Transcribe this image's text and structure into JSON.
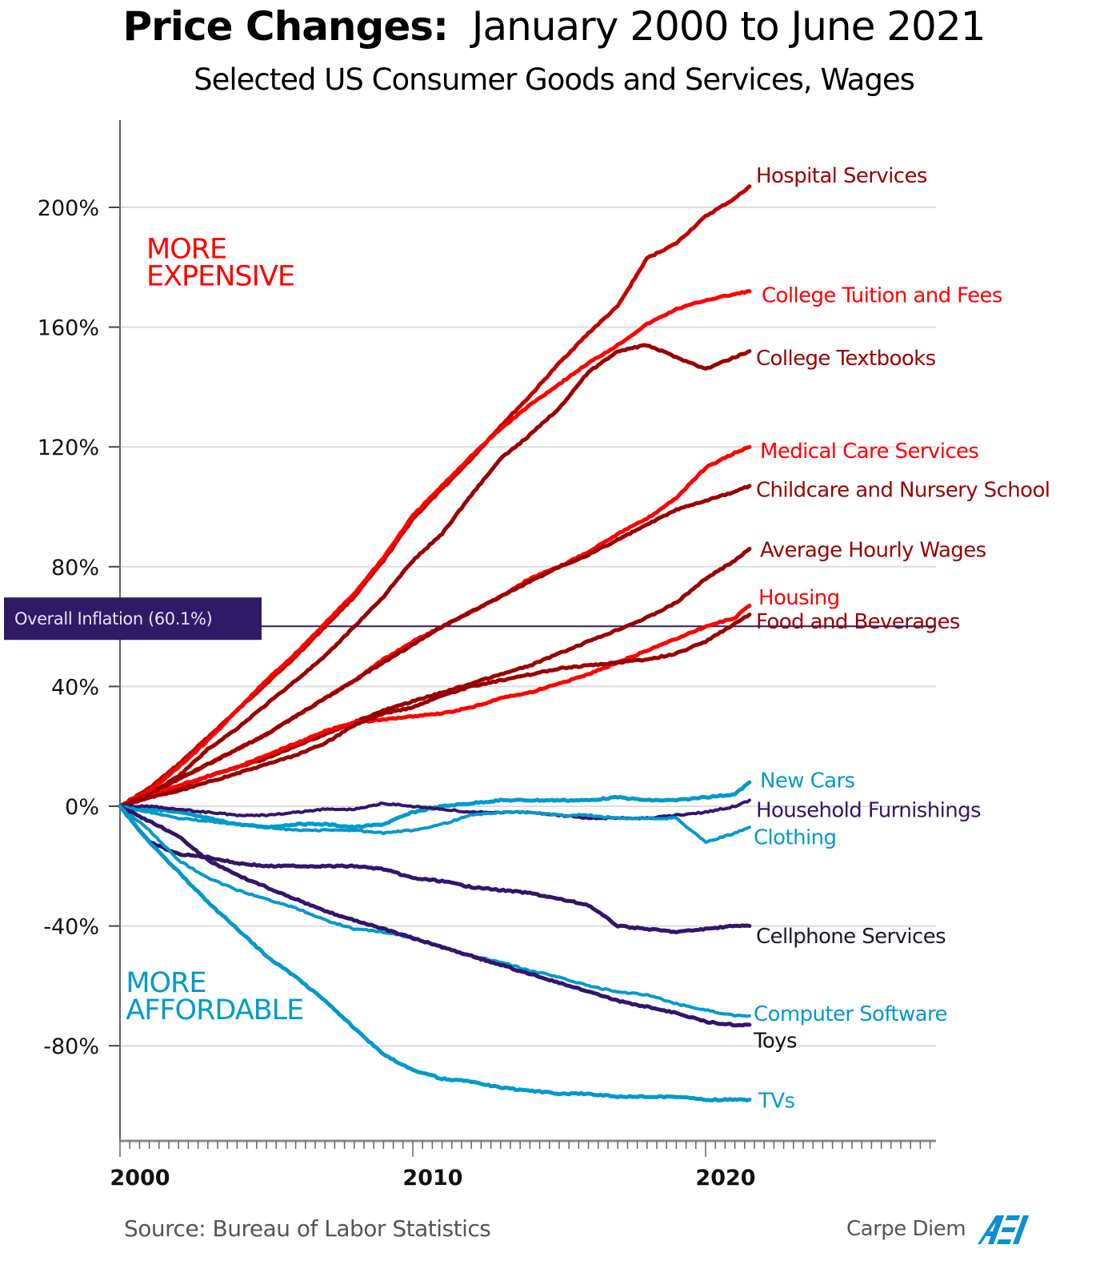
{
  "header": {
    "title_bold": "Price Changes:",
    "title_rest": "January 2000 to June 2021",
    "subtitle": "Selected US Consumer Goods and Services, Wages"
  },
  "footer": {
    "source": "Source: Bureau of Labor Statistics",
    "brand": "Carpe Diem",
    "logo": "AEI"
  },
  "colors": {
    "bright_red": "#ff0000",
    "dark_red": "#990000",
    "mid_red": "#c00000",
    "light_blue": "#0099cc",
    "purple": "#33146b",
    "inflation_box": "#2e1a66",
    "gridline": "#dcdcdc",
    "axis": "#666666"
  },
  "chart_data": {
    "type": "line",
    "title": "Price Changes: January 2000 to June 2021",
    "subtitle": "Selected US Consumer Goods and Services, Wages",
    "xlabel": "",
    "ylabel": "",
    "xlim": [
      2000,
      2027
    ],
    "ylim": [
      -110,
      230
    ],
    "x_ticks": [
      {
        "value": 2000,
        "label": "2000"
      },
      {
        "value": 2010,
        "label": "2010"
      },
      {
        "value": 2020,
        "label": "2020"
      }
    ],
    "y_ticks": [
      {
        "value": 200,
        "label": "200%"
      },
      {
        "value": 160,
        "label": "160%"
      },
      {
        "value": 120,
        "label": "120%"
      },
      {
        "value": 80,
        "label": "80%"
      },
      {
        "value": 40,
        "label": "40%"
      },
      {
        "value": 0,
        "label": "0%"
      },
      {
        "value": -40,
        "label": "-40%"
      },
      {
        "value": -80,
        "label": "-80%"
      }
    ],
    "grid": true,
    "region_labels": [
      {
        "text": [
          "MORE",
          "EXPENSIVE"
        ],
        "color": "#ff0000",
        "anchor": {
          "x": 2000.9,
          "y": 183
        }
      },
      {
        "text": [
          "MORE",
          "AFFORDABLE"
        ],
        "color": "#0099cc",
        "anchor": {
          "x": 2000.2,
          "y": -62
        }
      }
    ],
    "reference_line": {
      "label": "Overall Inflation (60.1%)",
      "value": 60.1,
      "color": "#2e1a66"
    },
    "x": [
      2000,
      2001,
      2002,
      2003,
      2004,
      2005,
      2006,
      2007,
      2008,
      2009,
      2010,
      2011,
      2012,
      2013,
      2014,
      2015,
      2016,
      2017,
      2018,
      2019,
      2020,
      2021,
      2021.5
    ],
    "series": [
      {
        "name": "Hospital Services",
        "color": "#c00000",
        "values": [
          0,
          6,
          14,
          23,
          32,
          41,
          50,
          60,
          70,
          82,
          96,
          106,
          116,
          127,
          137,
          148,
          158,
          167,
          183,
          188,
          197,
          203,
          207
        ],
        "label_value": 207
      },
      {
        "name": "College Tuition and Fees",
        "color": "#ff0000",
        "values": [
          0,
          5,
          13,
          22,
          32,
          42,
          51,
          61,
          71,
          83,
          97,
          107,
          117,
          126,
          134,
          141,
          148,
          154,
          161,
          166,
          169,
          171,
          172
        ],
        "label_value": 172
      },
      {
        "name": "College Textbooks",
        "color": "#990000",
        "values": [
          0,
          4,
          10,
          19,
          26,
          34,
          42,
          50,
          60,
          70,
          82,
          91,
          104,
          116,
          124,
          133,
          145,
          152,
          154,
          150,
          146,
          150,
          152
        ],
        "label_value": 152
      },
      {
        "name": "Medical Care Services",
        "color": "#ff0000",
        "values": [
          0,
          4,
          9,
          14,
          19,
          24,
          30,
          36,
          42,
          49,
          55,
          60,
          65,
          70,
          76,
          80,
          85,
          91,
          96,
          103,
          113,
          118,
          120
        ],
        "label_value": 120
      },
      {
        "name": "Childcare and Nursery School",
        "color": "#990000",
        "values": [
          0,
          4,
          9,
          14,
          19,
          24,
          30,
          36,
          42,
          48,
          54,
          60,
          65,
          70,
          75,
          80,
          84,
          89,
          94,
          99,
          102,
          105,
          107
        ],
        "label_value": 107
      },
      {
        "name": "Average Hourly Wages",
        "color": "#990000",
        "values": [
          0,
          3,
          6,
          10,
          13,
          16,
          20,
          24,
          28,
          32,
          35,
          38,
          41,
          44,
          47,
          51,
          55,
          59,
          63,
          68,
          76,
          82,
          86
        ],
        "label_value": 86
      },
      {
        "name": "Housing",
        "color": "#ff0000",
        "values": [
          0,
          3,
          7,
          10,
          13,
          17,
          21,
          25,
          28,
          29,
          30,
          31,
          33,
          36,
          38,
          41,
          44,
          48,
          52,
          56,
          60,
          63,
          67
        ],
        "label_value": 67
      },
      {
        "name": "Food and Beverages",
        "color": "#990000",
        "values": [
          0,
          3,
          5,
          8,
          11,
          14,
          17,
          21,
          27,
          31,
          33,
          37,
          40,
          42,
          44,
          46,
          47,
          48,
          49,
          51,
          55,
          61,
          64
        ],
        "label_value": 64
      },
      {
        "name": "New Cars",
        "color": "#0099cc",
        "values": [
          0,
          -1,
          -2,
          -4,
          -6,
          -7,
          -6,
          -6,
          -7,
          -6,
          -2,
          0,
          1,
          2,
          2,
          2,
          2,
          3,
          2,
          2,
          3,
          4,
          8
        ],
        "label_value": 8
      },
      {
        "name": "Household Furnishings",
        "color": "#33146b",
        "values": [
          0,
          0,
          -1,
          -2,
          -3,
          -3,
          -2,
          -1,
          -1,
          1,
          0,
          -1,
          -2,
          -2,
          -2,
          -3,
          -4,
          -4,
          -4,
          -3,
          -2,
          0,
          2
        ],
        "label_value": 2
      },
      {
        "name": "Clothing",
        "color": "#0099cc",
        "values": [
          0,
          -2,
          -4,
          -5,
          -6,
          -7,
          -8,
          -8,
          -8,
          -9,
          -8,
          -6,
          -3,
          -2,
          -2,
          -3,
          -3,
          -4,
          -4,
          -4,
          -12,
          -9,
          -7
        ],
        "label_value": -7
      },
      {
        "name": "Cellphone Services",
        "color": "#33146b",
        "values": [
          0,
          -12,
          -16,
          -17,
          -19,
          -20,
          -20,
          -20,
          -20,
          -21,
          -24,
          -25,
          -27,
          -28,
          -29,
          -31,
          -33,
          -40,
          -41,
          -42,
          -41,
          -40,
          -40
        ],
        "label_value": -40
      },
      {
        "name": "Computer Software",
        "color": "#0099cc",
        "values": [
          0,
          -8,
          -18,
          -24,
          -28,
          -31,
          -34,
          -38,
          -41,
          -42,
          -44,
          -47,
          -50,
          -52,
          -55,
          -57,
          -60,
          -62,
          -63,
          -66,
          -68,
          -70,
          -70
        ],
        "label_value": -70
      },
      {
        "name": "Toys",
        "color": "#33146b",
        "values": [
          0,
          -5,
          -10,
          -18,
          -23,
          -27,
          -31,
          -35,
          -38,
          -41,
          -44,
          -47,
          -50,
          -53,
          -56,
          -59,
          -62,
          -65,
          -67,
          -69,
          -72,
          -73,
          -73
        ],
        "label_value": -73
      },
      {
        "name": "TVs",
        "color": "#0099cc",
        "values": [
          0,
          -12,
          -22,
          -32,
          -41,
          -50,
          -57,
          -65,
          -74,
          -83,
          -88,
          -91,
          -92,
          -94,
          -95,
          -96,
          -96,
          -97,
          -97,
          -97,
          -98,
          -98,
          -98
        ],
        "label_value": -98
      }
    ]
  },
  "labels": [
    {
      "text": "Hospital Services",
      "color": "#990000",
      "at": 211
    },
    {
      "text": "College Tuition and Fees",
      "color": "#ff0000",
      "at": 171
    },
    {
      "text": "College Textbooks",
      "color": "#990000",
      "at": 150
    },
    {
      "text": "Medical Care Services",
      "color": "#ff0000",
      "at": 119
    },
    {
      "text": "Childcare and Nursery School",
      "color": "#990000",
      "at": 106
    },
    {
      "text": "Average Hourly Wages",
      "color": "#990000",
      "at": 86
    },
    {
      "text": "Housing",
      "color": "#ff0000",
      "at": 70
    },
    {
      "text": "Food and Beverages",
      "color": "#990000",
      "at": 62
    },
    {
      "text": "New Cars",
      "color": "#0099cc",
      "at": 9
    },
    {
      "text": "Household Furnishings",
      "color": "#33146b",
      "at": -1
    },
    {
      "text": "Clothing",
      "color": "#0099cc",
      "at": -10
    },
    {
      "text": "Cellphone Services",
      "color": "#1a1a2a",
      "at": -43
    },
    {
      "text": "Computer Software",
      "color": "#0099cc",
      "at": -69
    },
    {
      "text": "Toys",
      "color": "#111111",
      "at": -78
    },
    {
      "text": "TVs",
      "color": "#0099cc",
      "at": -98
    }
  ]
}
